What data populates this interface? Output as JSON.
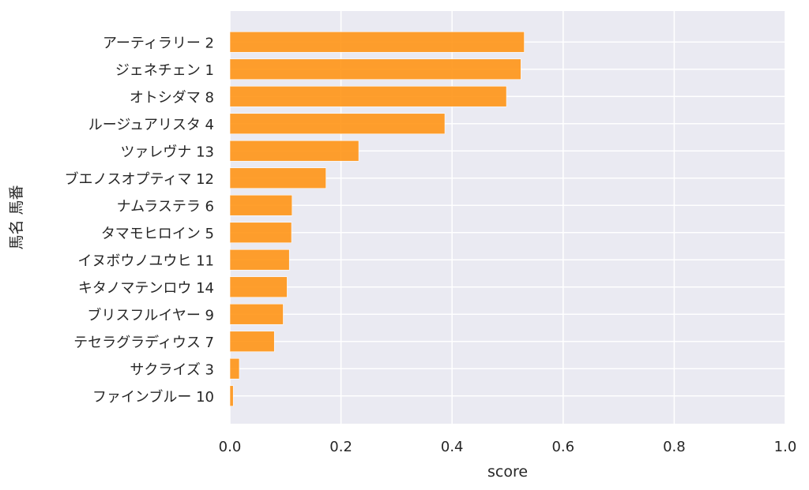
{
  "chart_data": {
    "type": "bar",
    "orientation": "horizontal",
    "xlabel": "score",
    "ylabel": "馬名 馬番",
    "xlim": [
      0.0,
      1.0
    ],
    "xticks": [
      "0.0",
      "0.2",
      "0.4",
      "0.6",
      "0.8",
      "1.0"
    ],
    "grid": true,
    "bar_color": "#ff9516",
    "background_color": "#eaeaf2",
    "categories": [
      "アーティラリー 2",
      "ジェネチェン 1",
      "オトシダマ 8",
      "ルージュアリスタ 4",
      "ツァレヴナ 13",
      "ブエノスオプティマ 12",
      "ナムラステラ 6",
      "タマモヒロイン 5",
      "イヌボウノユウヒ 11",
      "キタノマテンロウ 14",
      "ブリスフルイヤー 9",
      "テセラグラディウス 7",
      "サクライズ 3",
      "ファインブルー 10"
    ],
    "values": [
      0.53,
      0.524,
      0.498,
      0.387,
      0.232,
      0.173,
      0.112,
      0.111,
      0.107,
      0.103,
      0.096,
      0.08,
      0.017,
      0.006
    ]
  }
}
